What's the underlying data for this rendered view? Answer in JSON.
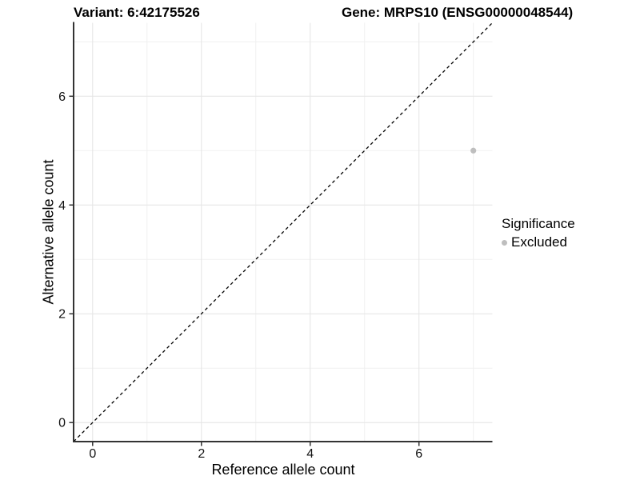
{
  "chart_data": {
    "type": "scatter",
    "titles": [
      "Variant: 6:42175526",
      "Gene: MRPS10 (ENSG00000048544)"
    ],
    "xlabel": "Reference allele count",
    "ylabel": "Alternative allele count",
    "xlim": [
      -0.35,
      7.35
    ],
    "ylim": [
      -0.35,
      7.35
    ],
    "x_ticks": [
      0,
      2,
      4,
      6
    ],
    "y_ticks": [
      0,
      2,
      4,
      6
    ],
    "x_minor": [
      1,
      3,
      5,
      7
    ],
    "y_minor": [
      1,
      3,
      5,
      7
    ],
    "grid": "major and minor, light grey on white panel",
    "series": [
      {
        "name": "Excluded",
        "color": "#bebebe",
        "points": [
          {
            "x": 7,
            "y": 5
          }
        ]
      }
    ],
    "reference_line": {
      "kind": "identity y=x",
      "style": "dashed",
      "color": "#000000"
    },
    "legend": {
      "title": "Significance",
      "position": "right",
      "items": [
        {
          "label": "Excluded",
          "color": "#bebebe"
        }
      ]
    },
    "colors": {
      "point": "#bebebe",
      "grid_major": "#e4e4e4",
      "grid_minor": "#f0f0f0",
      "axis": "#333333",
      "tick_label": "#111111",
      "reference": "#000000"
    }
  }
}
